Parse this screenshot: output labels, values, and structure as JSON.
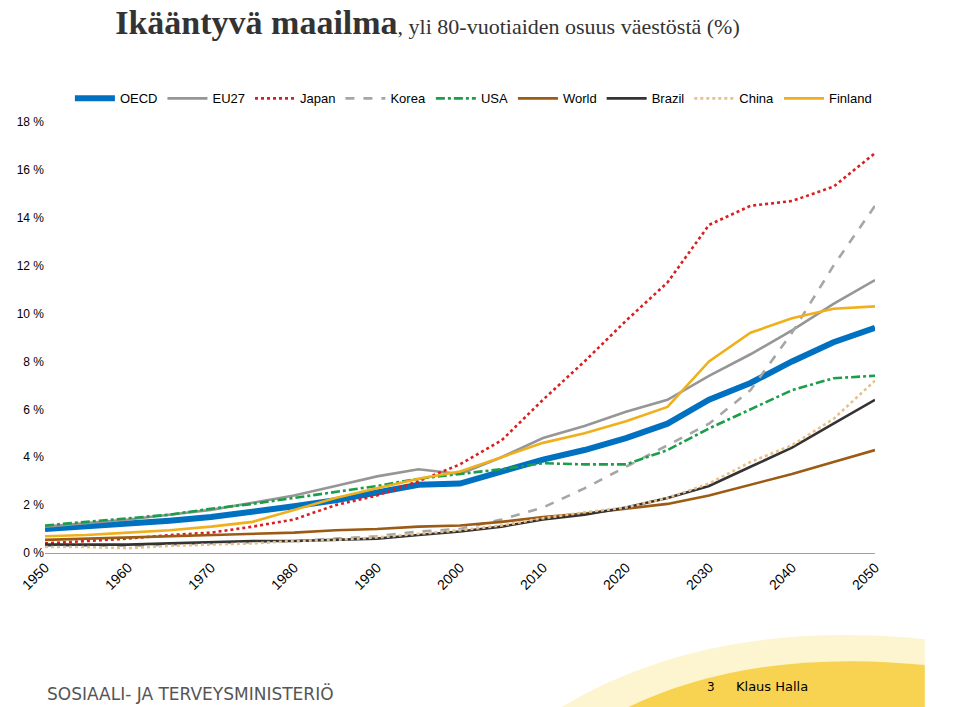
{
  "chart_data": {
    "type": "line",
    "title": "Ikääntyvä maailma",
    "subtitle": ", yli 80-vuotiaiden osuus väestöstä (%)",
    "annotations": [
      "SOSIAALI- JA TERVEYSMINISTERIÖ",
      "3",
      "Klaus Halla"
    ],
    "x": [
      1950,
      1955,
      1960,
      1965,
      1970,
      1975,
      1980,
      1985,
      1990,
      1995,
      2000,
      2005,
      2010,
      2015,
      2020,
      2025,
      2030,
      2035,
      2040,
      2045,
      2050
    ],
    "xlim": [
      1950,
      2050
    ],
    "xticks": [
      1950,
      1960,
      1970,
      1980,
      1990,
      2000,
      2010,
      2020,
      2030,
      2040,
      2050
    ],
    "ylim": [
      0,
      18
    ],
    "yticks": [
      {
        "value": 0,
        "label": "0 %"
      },
      {
        "value": 2,
        "label": "2 %"
      },
      {
        "value": 4,
        "label": "4 %"
      },
      {
        "value": 6,
        "label": "6 %"
      },
      {
        "value": 8,
        "label": "8 %"
      },
      {
        "value": 10,
        "label": "10 %"
      },
      {
        "value": 12,
        "label": "12 %"
      },
      {
        "value": 14,
        "label": "14 %"
      },
      {
        "value": 16,
        "label": "16 %"
      },
      {
        "value": 18,
        "label": "18 %"
      }
    ],
    "grid": false,
    "legend": "top",
    "series": [
      {
        "name": "OECD",
        "color": "#0070c0",
        "line_style": "solid",
        "values": [
          1.0,
          1.1,
          1.2,
          1.35,
          1.5,
          1.7,
          1.95,
          2.2,
          2.5,
          2.85,
          2.9,
          3.4,
          3.9,
          4.3,
          4.8,
          5.4,
          6.4,
          7.1,
          8.0,
          8.8,
          9.4
        ]
      },
      {
        "name": "EU27",
        "color": "#969696",
        "line_style": "solid",
        "values": [
          1.1,
          1.25,
          1.4,
          1.6,
          1.8,
          2.1,
          2.4,
          2.8,
          3.2,
          3.5,
          3.3,
          4.0,
          4.8,
          5.3,
          5.9,
          6.4,
          7.4,
          8.3,
          9.3,
          10.4,
          11.4
        ]
      },
      {
        "name": "Japan",
        "color": "#d92020",
        "line_style": "dot",
        "values": [
          0.4,
          0.5,
          0.6,
          0.75,
          0.85,
          1.1,
          1.4,
          2.0,
          2.4,
          3.0,
          3.7,
          4.7,
          6.4,
          8.0,
          9.7,
          11.3,
          13.7,
          14.5,
          14.7,
          15.3,
          16.7
        ]
      },
      {
        "name": "Korea",
        "color": "#a6a6a6",
        "line_style": "dash",
        "values": [
          0.3,
          0.3,
          0.3,
          0.35,
          0.4,
          0.45,
          0.5,
          0.6,
          0.7,
          0.9,
          1.0,
          1.4,
          1.9,
          2.7,
          3.6,
          4.5,
          5.4,
          6.8,
          9.2,
          12.0,
          14.5
        ]
      },
      {
        "name": "USA",
        "color": "#1a9e4a",
        "line_style": "dashdot",
        "values": [
          1.15,
          1.3,
          1.45,
          1.6,
          1.85,
          2.05,
          2.3,
          2.55,
          2.8,
          3.1,
          3.3,
          3.5,
          3.75,
          3.7,
          3.7,
          4.3,
          5.2,
          6.0,
          6.8,
          7.3,
          7.4
        ]
      },
      {
        "name": "World",
        "color": "#9c5b14",
        "line_style": "solid",
        "values": [
          0.55,
          0.6,
          0.65,
          0.7,
          0.75,
          0.8,
          0.85,
          0.95,
          1.0,
          1.1,
          1.15,
          1.3,
          1.5,
          1.65,
          1.85,
          2.05,
          2.4,
          2.85,
          3.3,
          3.8,
          4.3
        ]
      },
      {
        "name": "Brazil",
        "color": "#333333",
        "line_style": "solid",
        "values": [
          0.35,
          0.35,
          0.35,
          0.4,
          0.45,
          0.5,
          0.5,
          0.55,
          0.6,
          0.75,
          0.9,
          1.1,
          1.4,
          1.6,
          1.9,
          2.3,
          2.8,
          3.6,
          4.4,
          5.4,
          6.4
        ]
      },
      {
        "name": "China",
        "color": "#e8c08a",
        "line_style": "dot",
        "values": [
          0.25,
          0.25,
          0.2,
          0.3,
          0.35,
          0.4,
          0.5,
          0.55,
          0.65,
          0.8,
          0.95,
          1.15,
          1.45,
          1.7,
          1.9,
          2.3,
          2.9,
          3.8,
          4.5,
          5.6,
          7.2
        ]
      },
      {
        "name": "Finland",
        "color": "#f0b01c",
        "line_style": "solid",
        "values": [
          0.7,
          0.75,
          0.85,
          0.95,
          1.1,
          1.3,
          1.8,
          2.3,
          2.7,
          3.1,
          3.4,
          4.0,
          4.6,
          5.0,
          5.5,
          6.1,
          8.0,
          9.2,
          9.8,
          10.2,
          10.3
        ]
      }
    ]
  }
}
